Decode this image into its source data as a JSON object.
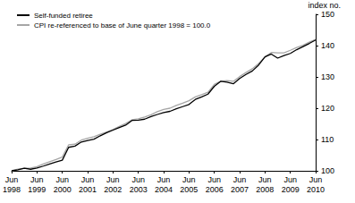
{
  "chart_data": {
    "type": "line",
    "y_label": "index no.",
    "categories": [
      "Jun\n1998",
      null,
      null,
      null,
      "Jun\n1999",
      null,
      null,
      null,
      "Jun\n2000",
      null,
      null,
      null,
      "Jun\n2001",
      null,
      null,
      null,
      "Jun\n2002",
      null,
      null,
      null,
      "Jun\n2003",
      null,
      null,
      null,
      "Jun\n2004",
      null,
      null,
      null,
      "Jun\n2005",
      null,
      null,
      null,
      "Jun\n2006",
      null,
      null,
      null,
      "Jun\n2007",
      null,
      null,
      null,
      "Jun\n2008",
      null,
      null,
      null,
      "Jun\n2009",
      null,
      null,
      null,
      "Jun\n2010"
    ],
    "series": [
      {
        "name": "Self-funded retiree",
        "color": "#000000",
        "values": [
          100.0,
          100.3,
          100.8,
          100.5,
          100.9,
          101.5,
          102.2,
          102.8,
          103.4,
          107.5,
          107.9,
          109.2,
          109.7,
          110.1,
          111.2,
          112.2,
          113.0,
          113.8,
          114.6,
          116.1,
          116.2,
          116.5,
          117.3,
          118.0,
          118.6,
          119.0,
          119.8,
          120.5,
          121.2,
          122.8,
          123.6,
          124.5,
          127.0,
          128.6,
          128.3,
          127.8,
          129.5,
          130.8,
          131.9,
          133.8,
          136.4,
          137.3,
          136.0,
          136.8,
          137.5,
          138.7,
          139.7,
          140.7,
          141.8
        ]
      },
      {
        "name": "CPI re-referenced to base of June quarter 1998 = 100.0",
        "color": "#a6a6a6",
        "values": [
          100.0,
          100.5,
          100.8,
          100.9,
          101.3,
          102.2,
          102.9,
          103.6,
          104.4,
          108.3,
          108.5,
          109.8,
          110.4,
          110.9,
          111.7,
          112.4,
          113.2,
          114.2,
          115.1,
          116.3,
          116.6,
          117.2,
          117.9,
          118.9,
          119.6,
          120.0,
          120.9,
          121.6,
          122.4,
          123.6,
          124.3,
          125.1,
          127.6,
          128.6,
          128.8,
          128.6,
          130.1,
          131.4,
          132.6,
          134.3,
          136.4,
          137.8,
          137.7,
          137.7,
          138.5,
          139.4,
          140.1,
          141.1,
          142.0
        ]
      }
    ],
    "ylim": [
      100,
      150
    ],
    "yticks": [
      100,
      110,
      120,
      130,
      140,
      150
    ],
    "grid": false,
    "legend": "upper left"
  }
}
